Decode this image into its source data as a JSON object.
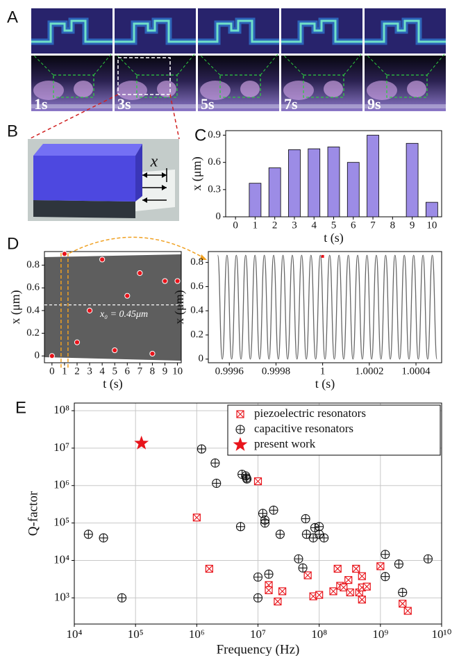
{
  "figure": {
    "panel_labels": [
      "A",
      "B",
      "C",
      "D",
      "E"
    ],
    "image_labels": [
      "1s",
      "3s",
      "5s",
      "7s",
      "9s"
    ],
    "b_label": "x"
  },
  "chart_data": [
    {
      "type": "bar",
      "categories": [
        "0",
        "1",
        "2",
        "3",
        "4",
        "5",
        "6",
        "7",
        "8",
        "9",
        "10"
      ],
      "values": [
        null,
        0.37,
        0.54,
        0.74,
        0.75,
        0.77,
        0.6,
        0.9,
        null,
        0.81,
        0.16
      ],
      "color": "#9c8ce6",
      "ylim": [
        0,
        0.95
      ],
      "yticks": [
        0,
        0.3,
        0.6,
        0.9
      ],
      "xlabel": "t (s)",
      "ylabel": "x (μm)"
    },
    {
      "type": "scatter",
      "x": [
        0,
        1,
        2,
        3,
        4,
        5,
        6,
        7,
        8,
        9,
        10
      ],
      "values": [
        0,
        0.9,
        0.12,
        0.4,
        0.85,
        0.05,
        0.53,
        0.73,
        0.02,
        0.66,
        0.66
      ],
      "color": "#e8141b",
      "xlim": [
        -0.6,
        10.3
      ],
      "ylim": [
        -0.06,
        0.92
      ],
      "xticks": [
        0,
        1,
        2,
        3,
        4,
        5,
        6,
        7,
        8,
        9,
        10
      ],
      "yticks": [
        0,
        0.2,
        0.4,
        0.6,
        0.8
      ],
      "xlabel": "t (s)",
      "ylabel": "x (μm)",
      "annotation": "x₀ = 0.45μm",
      "reference_line": 0.45
    },
    {
      "type": "line",
      "x": [
        0.99955,
        0.99957,
        0.99959,
        0.99961,
        0.99963,
        0.99965,
        0.99967,
        0.99969,
        0.99971,
        0.99973,
        0.99975,
        0.99977,
        0.99979,
        0.99981,
        0.99983,
        0.99985,
        0.99987,
        0.99989,
        0.99991,
        0.99993,
        0.99995,
        0.99997,
        0.99999,
        1.00001,
        1.00003,
        1.00005,
        1.00007,
        1.00009,
        1.00011,
        1.00013,
        1.00015,
        1.00017,
        1.00019,
        1.00021,
        1.00023,
        1.00025,
        1.00027,
        1.00029,
        1.00031,
        1.00033,
        1.00035,
        1.00037,
        1.00039,
        1.00041,
        1.00043,
        1.00045,
        1.00047,
        1.00049
      ],
      "values": [
        0.86,
        0,
        0.86,
        0,
        0.86,
        0,
        0.86,
        0,
        0.86,
        0,
        0.86,
        0,
        0.86,
        0,
        0.86,
        0,
        0.86,
        0,
        0.86,
        0,
        0.86,
        0,
        0.86,
        0,
        0.86,
        0,
        0.86,
        0,
        0.86,
        0,
        0.86,
        0,
        0.86,
        0,
        0.86,
        0,
        0.86,
        0,
        0.86,
        0,
        0.86,
        0,
        0.86,
        0,
        0.86,
        0,
        0.86,
        0
      ],
      "color": "#666666",
      "marker_point": {
        "x": 1,
        "value": 0.85,
        "color": "#e8141b"
      },
      "xlim": [
        0.99951,
        1.00051
      ],
      "ylim": [
        -0.03,
        0.89
      ],
      "xticks": [
        0.9996,
        0.9998,
        1,
        1.0002,
        1.0004
      ],
      "yticks": [
        0,
        0.2,
        0.4,
        0.6,
        0.8
      ],
      "xlabel": "t (s)",
      "ylabel": "x (μm)"
    },
    {
      "type": "scatter",
      "xlog": true,
      "ylog": true,
      "grid": true,
      "legend": "upper right",
      "xlim": [
        10000,
        10000000000
      ],
      "ylim": [
        200,
        160000000
      ],
      "xticks": [
        {
          "value": 10000,
          "label": "10⁴"
        },
        {
          "value": 100000,
          "label": "10⁵"
        },
        {
          "value": 1000000,
          "label": "10⁶"
        },
        {
          "value": 10000000,
          "label": "10⁷"
        },
        {
          "value": 100000000,
          "label": "10⁸"
        },
        {
          "value": 1000000000,
          "label": "10⁹"
        },
        {
          "value": 10000000000,
          "label": "10¹⁰"
        }
      ],
      "yticks": [
        {
          "value": 1000,
          "label": "10³"
        },
        {
          "value": 10000,
          "label": "10⁴"
        },
        {
          "value": 100000,
          "label": "10⁵"
        },
        {
          "value": 1000000,
          "label": "10⁶"
        },
        {
          "value": 10000000,
          "label": "10⁷"
        },
        {
          "value": 100000000,
          "label": "10⁸"
        }
      ],
      "xlabel": "Frequency (Hz)",
      "ylabel": "Q-factor",
      "series": [
        {
          "name": "piezoelectric resonators",
          "color": "#e8141b",
          "marker": "boxed-x",
          "x": [
            1000000,
            1600000,
            10000000,
            15000000,
            15000000,
            21000000,
            25000000,
            65000000,
            80000000,
            100000000,
            170000000,
            200000000,
            220000000,
            250000000,
            300000000,
            320000000,
            400000000,
            450000000,
            500000000,
            500000000,
            500000000,
            600000000,
            1000000000,
            2300000000,
            2800000000
          ],
          "values": [
            140000,
            6000,
            1300000,
            2200,
            1600,
            800,
            1500,
            4000,
            1100,
            1200,
            1500,
            6000,
            2100,
            1900,
            3000,
            1400,
            6000,
            1400,
            3800,
            1900,
            900,
            2000,
            7000,
            700,
            450
          ]
        },
        {
          "name": "capacitive resonators",
          "color": "#111111",
          "marker": "circle-plus",
          "x": [
            17000,
            30000,
            60000,
            1200000,
            2000000,
            2100000,
            5500000,
            6300000,
            6500000,
            6600000,
            5200000,
            12000000,
            13000000,
            13000000,
            18000000,
            23000000,
            10000000,
            10000000,
            15000000,
            46000000,
            54000000,
            60000000,
            62000000,
            80000000,
            85000000,
            100000000,
            100000000,
            120000000,
            1200000000,
            1200000000,
            2000000000,
            2300000000,
            6000000000
          ],
          "values": [
            50000,
            40000,
            1000,
            9500000,
            4000000,
            1150000,
            2000000,
            1800000,
            1600000,
            1500000,
            80000,
            180000,
            120000,
            100000,
            220000,
            50000,
            3600,
            1000,
            4300,
            11000,
            6300,
            130000,
            50000,
            40000,
            75000,
            80000,
            50000,
            40000,
            14500,
            3700,
            8000,
            1400,
            11000
          ]
        },
        {
          "name": "present work",
          "color": "#e8141b",
          "marker": "star",
          "x": [
            125000
          ],
          "values": [
            13500000
          ]
        }
      ]
    }
  ]
}
